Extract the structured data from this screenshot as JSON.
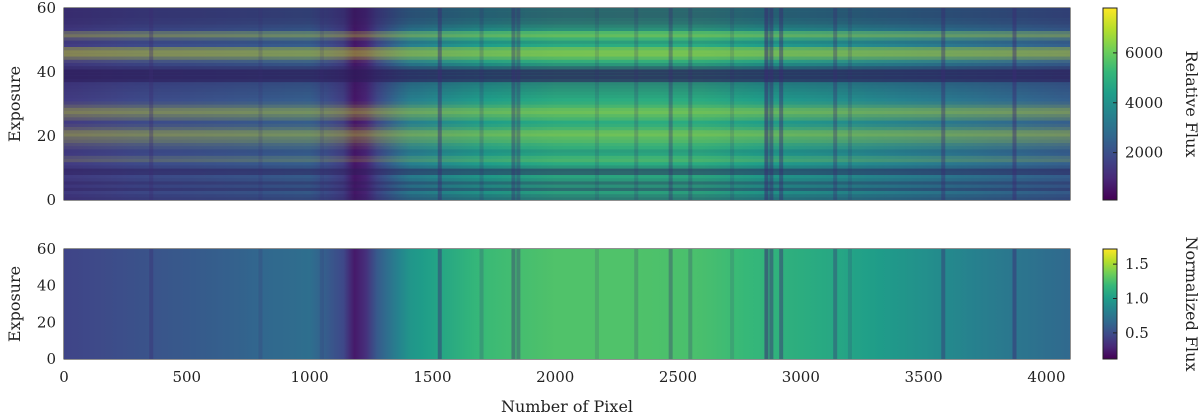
{
  "figure": {
    "xlabel": "Number of Pixel"
  },
  "colormap": [
    "#440154",
    "#482878",
    "#3e4989",
    "#31688e",
    "#26828e",
    "#1f9e89",
    "#35b779",
    "#6ece58",
    "#b5de2b",
    "#fde725"
  ],
  "chart_data": [
    {
      "type": "heatmap",
      "name": "top",
      "xlabel": "",
      "ylabel": "Exposure",
      "xlim": [
        0,
        4096
      ],
      "ylim": [
        0,
        60
      ],
      "xticks": [
        0,
        500,
        1000,
        1500,
        2000,
        2500,
        3000,
        3500,
        4000
      ],
      "xtick_labels_shown": false,
      "yticks": [
        0,
        20,
        40,
        60
      ],
      "colorbar": {
        "label": "Relative Flux",
        "range": [
          100,
          7800
        ],
        "ticks": [
          2000,
          4000,
          6000
        ]
      },
      "profile_x": [
        0,
        300,
        700,
        1000,
        1150,
        1200,
        1250,
        1400,
        1700,
        2000,
        2300,
        2600,
        2900,
        3200,
        3500,
        3800,
        4096
      ],
      "profile_norm": [
        0.35,
        0.45,
        0.53,
        0.6,
        0.35,
        0.0,
        0.35,
        0.85,
        1.1,
        1.22,
        1.24,
        1.22,
        1.08,
        0.97,
        0.85,
        0.72,
        0.6
      ],
      "absorption_lines": [
        {
          "x": 355,
          "depth": 0.35
        },
        {
          "x": 800,
          "depth": 0.18
        },
        {
          "x": 1050,
          "depth": 0.15
        },
        {
          "x": 1530,
          "depth": 0.45
        },
        {
          "x": 1700,
          "depth": 0.2
        },
        {
          "x": 1830,
          "depth": 0.4
        },
        {
          "x": 1850,
          "depth": 0.35
        },
        {
          "x": 2170,
          "depth": 0.15
        },
        {
          "x": 2330,
          "depth": 0.2
        },
        {
          "x": 2470,
          "depth": 0.35
        },
        {
          "x": 2550,
          "depth": 0.25
        },
        {
          "x": 2720,
          "depth": 0.15
        },
        {
          "x": 2860,
          "depth": 0.55
        },
        {
          "x": 2880,
          "depth": 0.45
        },
        {
          "x": 2920,
          "depth": 0.45
        },
        {
          "x": 3140,
          "depth": 0.35
        },
        {
          "x": 3200,
          "depth": 0.18
        },
        {
          "x": 3580,
          "depth": 0.4
        },
        {
          "x": 3870,
          "depth": 0.45
        }
      ],
      "exposure_level": [
        0.65,
        0.75,
        0.9,
        0.55,
        0.8,
        0.6,
        0.85,
        0.95,
        0.5,
        0.45,
        0.85,
        1.0,
        1.15,
        1.1,
        0.95,
        0.9,
        1.05,
        1.1,
        1.2,
        1.25,
        1.35,
        1.3,
        1.15,
        1.05,
        1.0,
        1.15,
        1.25,
        1.35,
        1.3,
        1.15,
        1.05,
        1.0,
        0.95,
        0.9,
        0.85,
        0.8,
        0.75,
        0.3,
        0.2,
        0.15,
        0.2,
        0.55,
        0.85,
        1.05,
        1.25,
        1.4,
        1.4,
        1.3,
        1.0,
        0.9,
        1.1,
        1.3,
        1.2,
        0.8,
        0.7,
        0.6,
        0.55,
        0.5,
        0.5,
        0.5
      ]
    },
    {
      "type": "heatmap",
      "name": "bottom",
      "xlabel": "Number of Pixel",
      "ylabel": "Exposure",
      "xlim": [
        0,
        4096
      ],
      "ylim": [
        0,
        60
      ],
      "xticks": [
        0,
        500,
        1000,
        1500,
        2000,
        2500,
        3000,
        3500,
        4000
      ],
      "yticks": [
        0,
        20,
        40,
        60
      ],
      "colorbar": {
        "label": "Normalized Flux",
        "range": [
          0.12,
          1.72
        ],
        "ticks": [
          0.5,
          1.0,
          1.5
        ]
      },
      "profile_x": [
        0,
        300,
        700,
        1000,
        1150,
        1200,
        1250,
        1400,
        1700,
        2000,
        2300,
        2600,
        2900,
        3200,
        3500,
        3800,
        4096
      ],
      "profile_values": [
        0.45,
        0.52,
        0.62,
        0.7,
        0.45,
        0.12,
        0.5,
        0.95,
        1.2,
        1.27,
        1.27,
        1.25,
        1.15,
        1.05,
        0.92,
        0.78,
        0.66
      ],
      "absorption_lines": [
        {
          "x": 355,
          "depth": 0.35
        },
        {
          "x": 800,
          "depth": 0.18
        },
        {
          "x": 1050,
          "depth": 0.15
        },
        {
          "x": 1530,
          "depth": 0.45
        },
        {
          "x": 1700,
          "depth": 0.2
        },
        {
          "x": 1830,
          "depth": 0.4
        },
        {
          "x": 1850,
          "depth": 0.35
        },
        {
          "x": 2170,
          "depth": 0.15
        },
        {
          "x": 2330,
          "depth": 0.2
        },
        {
          "x": 2470,
          "depth": 0.35
        },
        {
          "x": 2550,
          "depth": 0.25
        },
        {
          "x": 2720,
          "depth": 0.15
        },
        {
          "x": 2860,
          "depth": 0.55
        },
        {
          "x": 2880,
          "depth": 0.45
        },
        {
          "x": 2920,
          "depth": 0.45
        },
        {
          "x": 3140,
          "depth": 0.35
        },
        {
          "x": 3200,
          "depth": 0.18
        },
        {
          "x": 3580,
          "depth": 0.4
        },
        {
          "x": 3870,
          "depth": 0.45
        }
      ]
    }
  ]
}
